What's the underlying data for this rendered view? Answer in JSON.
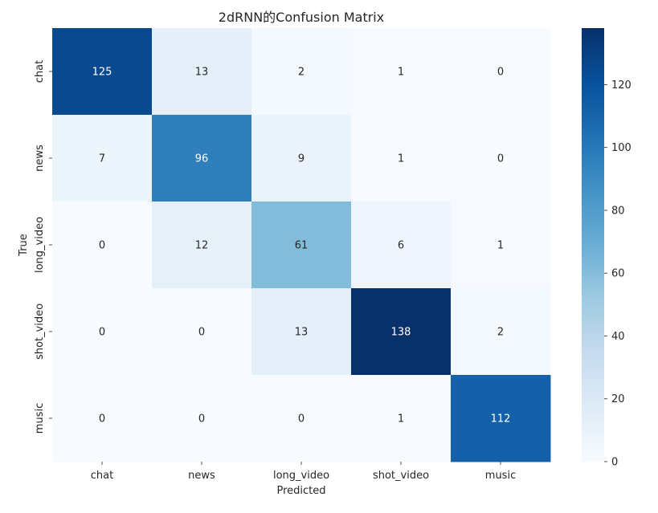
{
  "chart_data": {
    "type": "heatmap",
    "title": "2dRNN的Confusion Matrix",
    "xlabel": "Predicted",
    "ylabel": "True",
    "x_categories": [
      "chat",
      "news",
      "long_video",
      "shot_video",
      "music"
    ],
    "y_categories": [
      "chat",
      "news",
      "long_video",
      "shot_video",
      "music"
    ],
    "values": [
      [
        125,
        13,
        2,
        1,
        0
      ],
      [
        7,
        96,
        9,
        1,
        0
      ],
      [
        0,
        12,
        61,
        6,
        1
      ],
      [
        0,
        0,
        13,
        138,
        2
      ],
      [
        0,
        0,
        0,
        1,
        112
      ]
    ],
    "colormap": "Blues",
    "color_range": [
      0,
      138
    ],
    "colorbar_ticks": [
      "0",
      "20",
      "40",
      "60",
      "80",
      "100",
      "120"
    ],
    "colors": {
      "low": "#f7fbff",
      "high": "#08306b"
    }
  }
}
